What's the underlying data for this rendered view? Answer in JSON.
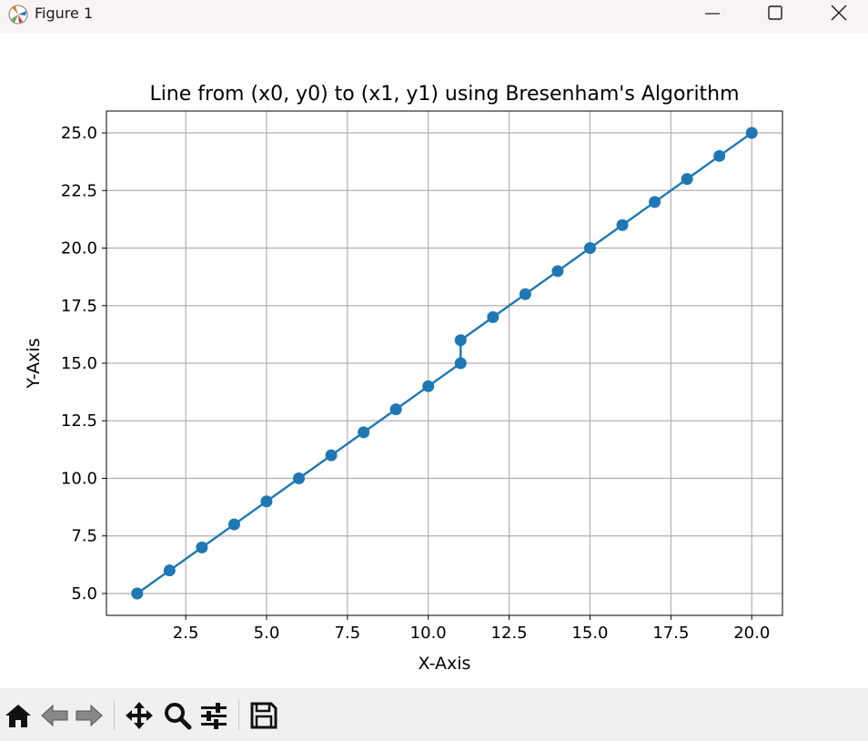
{
  "window": {
    "title": "Figure 1"
  },
  "toolbar": {
    "buttons": [
      "home-icon",
      "back-icon",
      "forward-icon",
      "pan-icon",
      "zoom-icon",
      "configure-subplots-icon",
      "save-icon"
    ]
  },
  "colors": {
    "series": "#1f77b4",
    "grid": "#b0b0b0",
    "toolbar_bg": "#f0f0f0",
    "titlebar_bg": "#f9f3f3"
  },
  "chart_data": {
    "type": "line",
    "title": "Line from (x0, y0) to (x1, y1) using Bresenham's Algorithm",
    "xlabel": "X-Axis",
    "ylabel": "Y-Axis",
    "xlim": [
      0.05,
      20.95
    ],
    "ylim": [
      4.05,
      25.95
    ],
    "xticks": [
      2.5,
      5.0,
      7.5,
      10.0,
      12.5,
      15.0,
      17.5,
      20.0
    ],
    "yticks": [
      5.0,
      7.5,
      10.0,
      12.5,
      15.0,
      17.5,
      20.0,
      22.5,
      25.0
    ],
    "xtick_labels": [
      "2.5",
      "5.0",
      "7.5",
      "10.0",
      "12.5",
      "15.0",
      "17.5",
      "20.0"
    ],
    "ytick_labels": [
      "5.0",
      "7.5",
      "10.0",
      "12.5",
      "15.0",
      "17.5",
      "20.0",
      "22.5",
      "25.0"
    ],
    "grid": true,
    "marker": "o",
    "x": [
      1,
      2,
      3,
      4,
      5,
      6,
      7,
      8,
      9,
      10,
      11,
      11,
      12,
      13,
      14,
      15,
      16,
      17,
      18,
      19,
      20
    ],
    "y": [
      5,
      6,
      7,
      8,
      9,
      10,
      11,
      12,
      13,
      14,
      15,
      16,
      17,
      18,
      19,
      20,
      21,
      22,
      23,
      24,
      25
    ]
  }
}
